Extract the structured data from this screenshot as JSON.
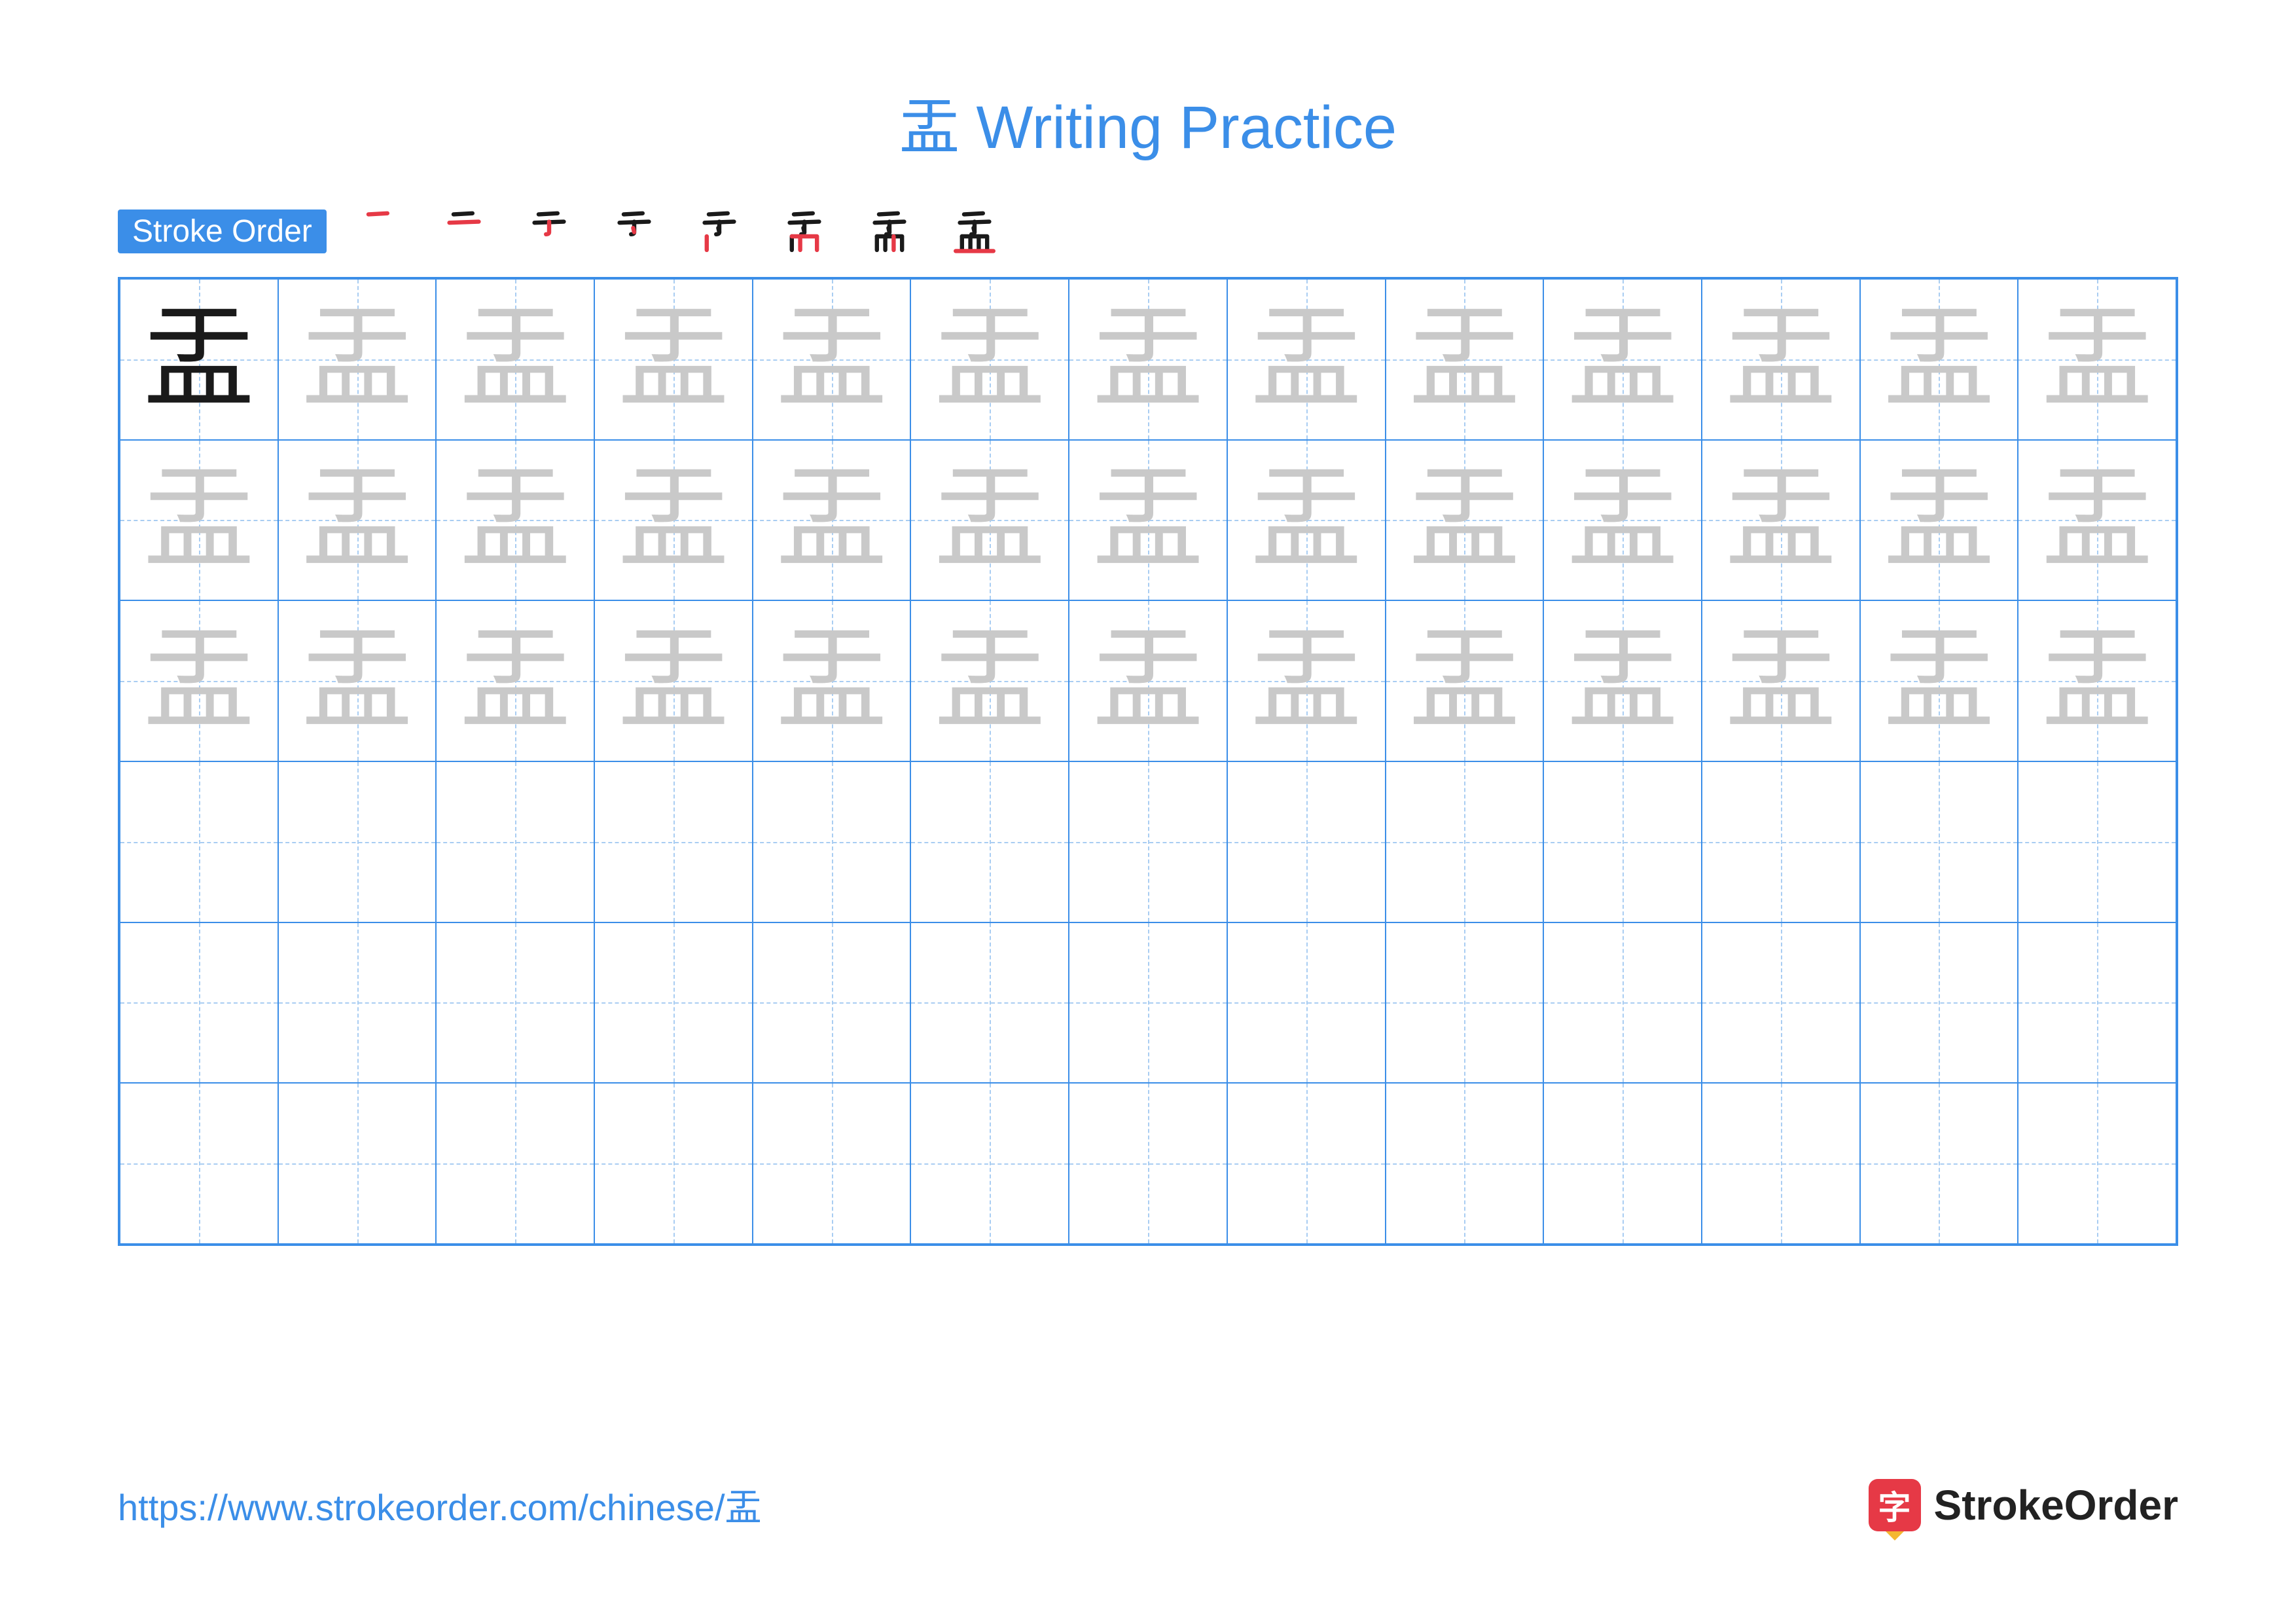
{
  "title": "盂 Writing Practice",
  "character": "盂",
  "strokeOrder": {
    "label": "Stroke Order",
    "steps": 8
  },
  "grid": {
    "cols": 13,
    "rows": 6,
    "tracedRows": 3,
    "colors": {
      "solid": "#1a1a1a",
      "trace": "#c9c9c9",
      "primary": "#3b8ee8",
      "guide": "#a9cdf2"
    }
  },
  "footer": {
    "url": "https://www.strokeorder.com/chinese/盂",
    "brand": "StrokeOrder",
    "brandIcon": "字"
  },
  "strokeSvgs": {
    "base": "#1a1a1a",
    "highlight": "#e63946"
  }
}
